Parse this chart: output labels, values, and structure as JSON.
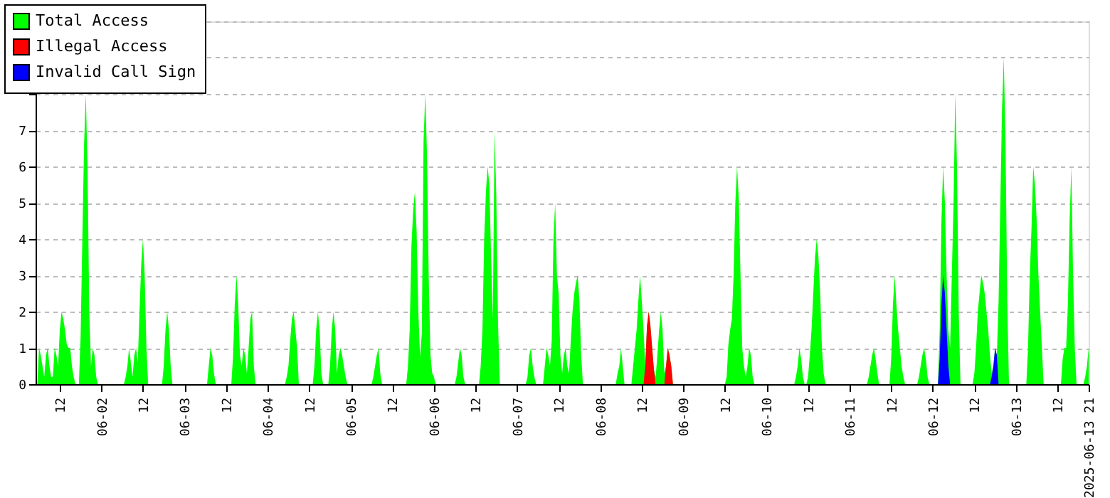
{
  "chart_data": {
    "type": "area",
    "legend": "top left",
    "grid": "y",
    "xlim": [
      "2025-06-01T05:00",
      "2025-06-13T21:00"
    ],
    "xticks": [
      {
        "value": "2025-06-01T12:00",
        "label": "12"
      },
      {
        "value": "2025-06-02T00:00",
        "label": "06-02"
      },
      {
        "value": "2025-06-02T12:00",
        "label": "12"
      },
      {
        "value": "2025-06-03T00:00",
        "label": "06-03"
      },
      {
        "value": "2025-06-03T12:00",
        "label": "12"
      },
      {
        "value": "2025-06-04T00:00",
        "label": "06-04"
      },
      {
        "value": "2025-06-04T12:00",
        "label": "12"
      },
      {
        "value": "2025-06-05T00:00",
        "label": "06-05"
      },
      {
        "value": "2025-06-05T12:00",
        "label": "12"
      },
      {
        "value": "2025-06-06T00:00",
        "label": "06-06"
      },
      {
        "value": "2025-06-06T12:00",
        "label": "12"
      },
      {
        "value": "2025-06-07T00:00",
        "label": "06-07"
      },
      {
        "value": "2025-06-07T12:00",
        "label": "12"
      },
      {
        "value": "2025-06-08T00:00",
        "label": "06-08"
      },
      {
        "value": "2025-06-08T12:00",
        "label": "12"
      },
      {
        "value": "2025-06-09T00:00",
        "label": "06-09"
      },
      {
        "value": "2025-06-09T12:00",
        "label": "12"
      },
      {
        "value": "2025-06-10T00:00",
        "label": "06-10"
      },
      {
        "value": "2025-06-10T12:00",
        "label": "12"
      },
      {
        "value": "2025-06-11T00:00",
        "label": "06-11"
      },
      {
        "value": "2025-06-11T12:00",
        "label": "12"
      },
      {
        "value": "2025-06-12T00:00",
        "label": "06-12"
      },
      {
        "value": "2025-06-12T12:00",
        "label": "12"
      },
      {
        "value": "2025-06-13T00:00",
        "label": "06-13"
      },
      {
        "value": "2025-06-13T12:00",
        "label": "12"
      },
      {
        "value": "2025-06-13T21:00",
        "label": "2025-06-13 21"
      }
    ],
    "ylim": [
      0,
      10
    ],
    "yticks": [
      0,
      1,
      2,
      3,
      4,
      5,
      6,
      7,
      {
        "value": 8,
        "label": null
      },
      {
        "value": 9,
        "label": null
      },
      {
        "value": 10,
        "label": null
      }
    ],
    "series": [
      {
        "name": "Total Access",
        "color": "#00ff00",
        "x": [
          "2025-06-01T05:30",
          "2025-06-01T06:00",
          "2025-06-01T06:30",
          "2025-06-01T07:00",
          "2025-06-01T07:30",
          "2025-06-01T08:00",
          "2025-06-01T08:30",
          "2025-06-01T09:00",
          "2025-06-01T09:30",
          "2025-06-01T10:00",
          "2025-06-01T10:30",
          "2025-06-01T11:00",
          "2025-06-01T11:30",
          "2025-06-01T12:00",
          "2025-06-01T12:30",
          "2025-06-01T13:00",
          "2025-06-01T13:30",
          "2025-06-01T14:00",
          "2025-06-01T14:30",
          "2025-06-01T15:00",
          "2025-06-01T15:30",
          "2025-06-01T16:00",
          "2025-06-01T16:30",
          "2025-06-01T17:30",
          "2025-06-01T18:00",
          "2025-06-01T18:30",
          "2025-06-01T19:00",
          "2025-06-01T19:30",
          "2025-06-01T20:00",
          "2025-06-01T20:30",
          "2025-06-01T21:00",
          "2025-06-01T21:30",
          "2025-06-01T22:00",
          "2025-06-01T22:30",
          "2025-06-01T23:00",
          "2025-06-02T06:30",
          "2025-06-02T07:00",
          "2025-06-02T07:30",
          "2025-06-02T08:00",
          "2025-06-02T08:30",
          "2025-06-02T09:00",
          "2025-06-02T09:30",
          "2025-06-02T10:00",
          "2025-06-02T10:30",
          "2025-06-02T11:00",
          "2025-06-02T11:30",
          "2025-06-02T12:00",
          "2025-06-02T12:30",
          "2025-06-02T13:00",
          "2025-06-02T13:30",
          "2025-06-02T17:30",
          "2025-06-02T18:00",
          "2025-06-02T18:30",
          "2025-06-02T19:00",
          "2025-06-02T19:30",
          "2025-06-02T20:00",
          "2025-06-02T20:30",
          "2025-06-03T06:30",
          "2025-06-03T07:00",
          "2025-06-03T07:30",
          "2025-06-03T08:00",
          "2025-06-03T08:30",
          "2025-06-03T09:00",
          "2025-06-03T13:30",
          "2025-06-03T14:00",
          "2025-06-03T14:30",
          "2025-06-03T15:00",
          "2025-06-03T15:30",
          "2025-06-03T16:00",
          "2025-06-03T16:30",
          "2025-06-03T17:00",
          "2025-06-03T17:30",
          "2025-06-03T18:00",
          "2025-06-03T18:30",
          "2025-06-03T19:00",
          "2025-06-03T19:30",
          "2025-06-03T20:00",
          "2025-06-03T20:30",
          "2025-06-04T05:00",
          "2025-06-04T05:30",
          "2025-06-04T06:00",
          "2025-06-04T06:30",
          "2025-06-04T07:00",
          "2025-06-04T07:30",
          "2025-06-04T08:00",
          "2025-06-04T08:30",
          "2025-06-04T09:00",
          "2025-06-04T13:00",
          "2025-06-04T13:30",
          "2025-06-04T14:00",
          "2025-06-04T14:30",
          "2025-06-04T15:00",
          "2025-06-04T15:30",
          "2025-06-04T16:00",
          "2025-06-04T17:30",
          "2025-06-04T18:00",
          "2025-06-04T18:30",
          "2025-06-04T19:00",
          "2025-06-04T19:30",
          "2025-06-04T20:00",
          "2025-06-04T20:30",
          "2025-06-04T21:00",
          "2025-06-04T21:30",
          "2025-06-04T22:00",
          "2025-06-04T22:30",
          "2025-06-04T23:00",
          "2025-06-05T06:00",
          "2025-06-05T06:30",
          "2025-06-05T07:00",
          "2025-06-05T07:30",
          "2025-06-05T08:00",
          "2025-06-05T08:30",
          "2025-06-05T09:00",
          "2025-06-05T16:00",
          "2025-06-05T16:30",
          "2025-06-05T17:00",
          "2025-06-05T17:30",
          "2025-06-05T18:00",
          "2025-06-05T18:30",
          "2025-06-05T19:00",
          "2025-06-05T19:30",
          "2025-06-05T20:00",
          "2025-06-05T20:30",
          "2025-06-05T21:00",
          "2025-06-05T21:30",
          "2025-06-05T22:00",
          "2025-06-05T22:30",
          "2025-06-05T23:00",
          "2025-06-05T23:30",
          "2025-06-06T00:00",
          "2025-06-06T00:30",
          "2025-06-06T06:00",
          "2025-06-06T06:30",
          "2025-06-06T07:00",
          "2025-06-06T07:30",
          "2025-06-06T08:00",
          "2025-06-06T08:30",
          "2025-06-06T09:00",
          "2025-06-06T13:00",
          "2025-06-06T13:30",
          "2025-06-06T14:00",
          "2025-06-06T14:30",
          "2025-06-06T15:00",
          "2025-06-06T15:30",
          "2025-06-06T16:00",
          "2025-06-06T16:30",
          "2025-06-06T17:00",
          "2025-06-06T17:30",
          "2025-06-06T18:00",
          "2025-06-06T18:30",
          "2025-06-06T19:00",
          "2025-06-07T02:30",
          "2025-06-07T03:00",
          "2025-06-07T03:30",
          "2025-06-07T04:00",
          "2025-06-07T04:30",
          "2025-06-07T05:00",
          "2025-06-07T05:30",
          "2025-06-07T07:30",
          "2025-06-07T08:00",
          "2025-06-07T08:30",
          "2025-06-07T09:00",
          "2025-06-07T09:30",
          "2025-06-07T10:00",
          "2025-06-07T10:30",
          "2025-06-07T11:00",
          "2025-06-07T11:30",
          "2025-06-07T12:00",
          "2025-06-07T12:30",
          "2025-06-07T13:00",
          "2025-06-07T13:30",
          "2025-06-07T14:00",
          "2025-06-07T14:30",
          "2025-06-07T15:00",
          "2025-06-07T15:30",
          "2025-06-07T16:00",
          "2025-06-07T16:30",
          "2025-06-07T17:00",
          "2025-06-07T17:30",
          "2025-06-07T18:00",
          "2025-06-07T18:30",
          "2025-06-07T19:00",
          "2025-06-08T04:30",
          "2025-06-08T05:00",
          "2025-06-08T05:30",
          "2025-06-08T06:00",
          "2025-06-08T06:30",
          "2025-06-08T07:00",
          "2025-06-08T09:00",
          "2025-06-08T09:30",
          "2025-06-08T10:00",
          "2025-06-08T10:30",
          "2025-06-08T11:00",
          "2025-06-08T11:30",
          "2025-06-08T12:00",
          "2025-06-08T12:30",
          "2025-06-08T13:00",
          "2025-06-08T13:30",
          "2025-06-08T14:00",
          "2025-06-08T14:30",
          "2025-06-08T15:00",
          "2025-06-08T15:30",
          "2025-06-08T16:00",
          "2025-06-08T16:30",
          "2025-06-08T17:00",
          "2025-06-08T17:30",
          "2025-06-08T18:00",
          "2025-06-08T18:30",
          "2025-06-08T19:00",
          "2025-06-08T19:30",
          "2025-06-08T20:00",
          "2025-06-08T20:30",
          "2025-06-08T21:00",
          "2025-06-09T12:00",
          "2025-06-09T12:30",
          "2025-06-09T13:00",
          "2025-06-09T13:30",
          "2025-06-09T14:00",
          "2025-06-09T14:30",
          "2025-06-09T15:00",
          "2025-06-09T15:30",
          "2025-06-09T16:00",
          "2025-06-09T16:30",
          "2025-06-09T17:00",
          "2025-06-09T17:30",
          "2025-06-09T18:00",
          "2025-06-09T18:30",
          "2025-06-09T19:00",
          "2025-06-09T19:30",
          "2025-06-09T20:00",
          "2025-06-09T20:30",
          "2025-06-10T08:00",
          "2025-06-10T08:30",
          "2025-06-10T09:00",
          "2025-06-10T09:30",
          "2025-06-10T10:00",
          "2025-06-10T10:30",
          "2025-06-10T11:00",
          "2025-06-10T11:30",
          "2025-06-10T12:00",
          "2025-06-10T12:30",
          "2025-06-10T13:00",
          "2025-06-10T13:30",
          "2025-06-10T14:00",
          "2025-06-10T14:30",
          "2025-06-10T15:00",
          "2025-06-10T15:30",
          "2025-06-10T16:00",
          "2025-06-10T16:30",
          "2025-06-10T17:00",
          "2025-06-11T05:00",
          "2025-06-11T05:30",
          "2025-06-11T06:00",
          "2025-06-11T06:30",
          "2025-06-11T07:00",
          "2025-06-11T07:30",
          "2025-06-11T08:00",
          "2025-06-11T08:30",
          "2025-06-11T11:30",
          "2025-06-11T12:00",
          "2025-06-11T12:30",
          "2025-06-11T13:00",
          "2025-06-11T13:30",
          "2025-06-11T14:00",
          "2025-06-11T14:30",
          "2025-06-11T15:00",
          "2025-06-11T15:30",
          "2025-06-11T16:00",
          "2025-06-11T19:30",
          "2025-06-11T20:00",
          "2025-06-11T20:30",
          "2025-06-11T21:00",
          "2025-06-11T21:30",
          "2025-06-11T22:00",
          "2025-06-11T22:30",
          "2025-06-11T23:00",
          "2025-06-12T01:30",
          "2025-06-12T02:00",
          "2025-06-12T02:30",
          "2025-06-12T03:00",
          "2025-06-12T03:30",
          "2025-06-12T04:00",
          "2025-06-12T04:30",
          "2025-06-12T05:00",
          "2025-06-12T05:30",
          "2025-06-12T06:00",
          "2025-06-12T06:30",
          "2025-06-12T07:00",
          "2025-06-12T07:30",
          "2025-06-12T08:00",
          "2025-06-12T11:30",
          "2025-06-12T12:00",
          "2025-06-12T12:30",
          "2025-06-12T13:00",
          "2025-06-12T13:30",
          "2025-06-12T14:00",
          "2025-06-12T14:30",
          "2025-06-12T15:00",
          "2025-06-12T15:30",
          "2025-06-12T16:00",
          "2025-06-12T16:30",
          "2025-06-12T17:00",
          "2025-06-12T17:30",
          "2025-06-12T18:00",
          "2025-06-12T18:30",
          "2025-06-12T19:00",
          "2025-06-12T19:30",
          "2025-06-12T20:00",
          "2025-06-12T20:30",
          "2025-06-12T21:00",
          "2025-06-12T21:30",
          "2025-06-12T22:00",
          "2025-06-13T03:00",
          "2025-06-13T03:30",
          "2025-06-13T04:00",
          "2025-06-13T04:30",
          "2025-06-13T05:00",
          "2025-06-13T05:30",
          "2025-06-13T06:00",
          "2025-06-13T06:30",
          "2025-06-13T07:00",
          "2025-06-13T07:30",
          "2025-06-13T08:00",
          "2025-06-13T13:00",
          "2025-06-13T13:30",
          "2025-06-13T14:00",
          "2025-06-13T14:30",
          "2025-06-13T15:00",
          "2025-06-13T15:30",
          "2025-06-13T16:00",
          "2025-06-13T16:30",
          "2025-06-13T17:00",
          "2025-06-13T17:30",
          "2025-06-13T19:30",
          "2025-06-13T20:00",
          "2025-06-13T20:30",
          "2025-06-13T21:00"
        ],
        "values": [
          0,
          1,
          0.8,
          0.5,
          0.2,
          0.8,
          1,
          0.5,
          0.2,
          0.2,
          1,
          0.8,
          0.5,
          1.5,
          2,
          1.8,
          1.5,
          1.1,
          1,
          1,
          0.5,
          0.2,
          0,
          0,
          1.3,
          4,
          6.6,
          8,
          6,
          2,
          0.5,
          1,
          0.8,
          0.2,
          0,
          0,
          0.2,
          0.5,
          1,
          0.6,
          0.2,
          0.8,
          1,
          0.6,
          2,
          3.3,
          4,
          3,
          1,
          0,
          0,
          0.5,
          1.5,
          2,
          1.5,
          0.5,
          0,
          0,
          0.5,
          1,
          0.8,
          0.3,
          0,
          0,
          0.75,
          2.2,
          3,
          2.2,
          0.8,
          0.5,
          1,
          0.8,
          0.3,
          1,
          1.8,
          2,
          0.5,
          0,
          0,
          0.2,
          0.5,
          1.2,
          1.8,
          2,
          1.5,
          1,
          0,
          0,
          0.5,
          1.5,
          2,
          1.5,
          0.3,
          0,
          0,
          0.5,
          1.5,
          2,
          1.5,
          0.3,
          0.8,
          1,
          0.8,
          0.5,
          0.2,
          0,
          0,
          0.2,
          0.5,
          0.8,
          1,
          0.3,
          0,
          0,
          0.5,
          1.5,
          3.8,
          4.8,
          5.3,
          4.2,
          2,
          0.75,
          1.4,
          6.7,
          8,
          6.3,
          2.9,
          0.8,
          0.3,
          0.2,
          0,
          0,
          0.2,
          0.6,
          1,
          0.8,
          0.2,
          0,
          0,
          0.5,
          1.5,
          4,
          5.3,
          6,
          5.5,
          3.5,
          1.8,
          7,
          5.2,
          1.7,
          0,
          0,
          0.2,
          0.8,
          1,
          0.5,
          0.2,
          0,
          0,
          0.5,
          1,
          0.8,
          0.5,
          1.2,
          4,
          5,
          3,
          2.5,
          0.8,
          0.3,
          0.8,
          1,
          0.5,
          0.3,
          1.2,
          2,
          2.5,
          2.8,
          3,
          2.3,
          0.8,
          0,
          0,
          0.3,
          0.5,
          1,
          0.5,
          0,
          0,
          0.5,
          1,
          1.5,
          2.3,
          3,
          2.3,
          1.5,
          0.5,
          1.6,
          2,
          1.6,
          1,
          0.4,
          0.2,
          0.8,
          1.5,
          2,
          1.5,
          0.3,
          0.5,
          1,
          0.8,
          0.5,
          0,
          0,
          0.2,
          1.1,
          1.5,
          1.8,
          3,
          5,
          6,
          5.1,
          3,
          1,
          0.5,
          0.2,
          0.5,
          1,
          0.8,
          0.2,
          0,
          0,
          0.2,
          0.5,
          1,
          0.7,
          0.2,
          0,
          0,
          0.2,
          0.8,
          1.5,
          2.5,
          3.5,
          4,
          3.5,
          2.5,
          1,
          0.3,
          0,
          0,
          0.2,
          0.5,
          0.8,
          1,
          0.7,
          0.3,
          0,
          0,
          0.7,
          2.2,
          3,
          2.2,
          1.5,
          1,
          0.5,
          0.2,
          0,
          0,
          0.2,
          0.5,
          0.8,
          1,
          0.7,
          0.2,
          0,
          0,
          1.5,
          4.5,
          6,
          5,
          3,
          1.5,
          1,
          3,
          5,
          8,
          6,
          2,
          0,
          0,
          0.3,
          1,
          2,
          2.5,
          3,
          2.8,
          2.5,
          2,
          1.5,
          0.8,
          0.3,
          0.5,
          1,
          0.8,
          2.3,
          5,
          7.6,
          9,
          6.7,
          2.3,
          0,
          0,
          1,
          3,
          4.3,
          6,
          5.5,
          4.5,
          3,
          2,
          1,
          0,
          0,
          0.7,
          1,
          1,
          2.2,
          4.5,
          6,
          3,
          1,
          0,
          0,
          0.2,
          0.5,
          1
        ]
      },
      {
        "name": "Illegal Access",
        "color": "#ff0000",
        "x": [
          "2025-06-08T12:30",
          "2025-06-08T13:00",
          "2025-06-08T13:30",
          "2025-06-08T14:00",
          "2025-06-08T14:30",
          "2025-06-08T15:00",
          "2025-06-08T15:30",
          "2025-06-08T16:00",
          "2025-06-08T18:30",
          "2025-06-08T19:00",
          "2025-06-08T19:30",
          "2025-06-08T20:00",
          "2025-06-08T20:30",
          "2025-06-08T21:00"
        ],
        "values": [
          0,
          0.5,
          1.6,
          2,
          1.6,
          1,
          0.4,
          0,
          0,
          0.5,
          1,
          0.8,
          0.5,
          0
        ]
      },
      {
        "name": "Invalid Call Sign",
        "color": "#0000ff",
        "x": [
          "2025-06-12T01:30",
          "2025-06-12T02:00",
          "2025-06-12T02:30",
          "2025-06-12T03:00",
          "2025-06-12T03:30",
          "2025-06-12T04:00",
          "2025-06-12T04:30",
          "2025-06-12T05:00",
          "2025-06-12T16:30",
          "2025-06-12T17:00",
          "2025-06-12T17:30",
          "2025-06-12T18:00",
          "2025-06-12T18:30",
          "2025-06-12T19:00"
        ],
        "values": [
          0,
          0.7,
          2.2,
          3,
          2.5,
          1.5,
          0.5,
          0,
          0,
          0.2,
          0.5,
          1,
          0.8,
          0
        ]
      }
    ]
  }
}
